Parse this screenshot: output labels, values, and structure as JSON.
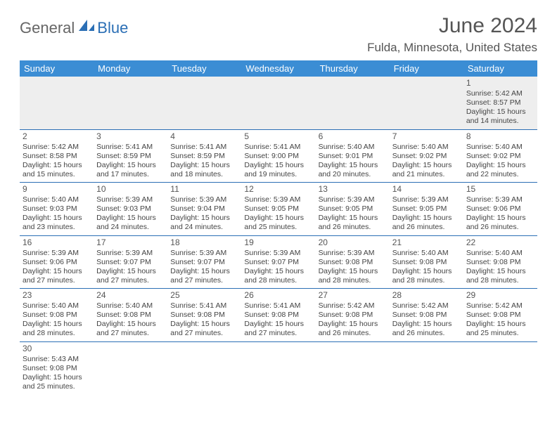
{
  "logo": {
    "text1": "General",
    "text2": "Blue"
  },
  "title": "June 2024",
  "location": "Fulda, Minnesota, United States",
  "colors": {
    "header_bg": "#3b8dd4",
    "header_text": "#ffffff",
    "row_border": "#2b6fb5",
    "first_row_bg": "#eeeeee",
    "body_text": "#444444",
    "title_text": "#555555",
    "logo_accent": "#2b6fb5"
  },
  "columns": [
    "Sunday",
    "Monday",
    "Tuesday",
    "Wednesday",
    "Thursday",
    "Friday",
    "Saturday"
  ],
  "weeks": [
    [
      null,
      null,
      null,
      null,
      null,
      null,
      {
        "d": "1",
        "sr": "5:42 AM",
        "ss": "8:57 PM",
        "dl": "15 hours and 14 minutes."
      }
    ],
    [
      {
        "d": "2",
        "sr": "5:42 AM",
        "ss": "8:58 PM",
        "dl": "15 hours and 15 minutes."
      },
      {
        "d": "3",
        "sr": "5:41 AM",
        "ss": "8:59 PM",
        "dl": "15 hours and 17 minutes."
      },
      {
        "d": "4",
        "sr": "5:41 AM",
        "ss": "8:59 PM",
        "dl": "15 hours and 18 minutes."
      },
      {
        "d": "5",
        "sr": "5:41 AM",
        "ss": "9:00 PM",
        "dl": "15 hours and 19 minutes."
      },
      {
        "d": "6",
        "sr": "5:40 AM",
        "ss": "9:01 PM",
        "dl": "15 hours and 20 minutes."
      },
      {
        "d": "7",
        "sr": "5:40 AM",
        "ss": "9:02 PM",
        "dl": "15 hours and 21 minutes."
      },
      {
        "d": "8",
        "sr": "5:40 AM",
        "ss": "9:02 PM",
        "dl": "15 hours and 22 minutes."
      }
    ],
    [
      {
        "d": "9",
        "sr": "5:40 AM",
        "ss": "9:03 PM",
        "dl": "15 hours and 23 minutes."
      },
      {
        "d": "10",
        "sr": "5:39 AM",
        "ss": "9:03 PM",
        "dl": "15 hours and 24 minutes."
      },
      {
        "d": "11",
        "sr": "5:39 AM",
        "ss": "9:04 PM",
        "dl": "15 hours and 24 minutes."
      },
      {
        "d": "12",
        "sr": "5:39 AM",
        "ss": "9:05 PM",
        "dl": "15 hours and 25 minutes."
      },
      {
        "d": "13",
        "sr": "5:39 AM",
        "ss": "9:05 PM",
        "dl": "15 hours and 26 minutes."
      },
      {
        "d": "14",
        "sr": "5:39 AM",
        "ss": "9:05 PM",
        "dl": "15 hours and 26 minutes."
      },
      {
        "d": "15",
        "sr": "5:39 AM",
        "ss": "9:06 PM",
        "dl": "15 hours and 26 minutes."
      }
    ],
    [
      {
        "d": "16",
        "sr": "5:39 AM",
        "ss": "9:06 PM",
        "dl": "15 hours and 27 minutes."
      },
      {
        "d": "17",
        "sr": "5:39 AM",
        "ss": "9:07 PM",
        "dl": "15 hours and 27 minutes."
      },
      {
        "d": "18",
        "sr": "5:39 AM",
        "ss": "9:07 PM",
        "dl": "15 hours and 27 minutes."
      },
      {
        "d": "19",
        "sr": "5:39 AM",
        "ss": "9:07 PM",
        "dl": "15 hours and 28 minutes."
      },
      {
        "d": "20",
        "sr": "5:39 AM",
        "ss": "9:08 PM",
        "dl": "15 hours and 28 minutes."
      },
      {
        "d": "21",
        "sr": "5:40 AM",
        "ss": "9:08 PM",
        "dl": "15 hours and 28 minutes."
      },
      {
        "d": "22",
        "sr": "5:40 AM",
        "ss": "9:08 PM",
        "dl": "15 hours and 28 minutes."
      }
    ],
    [
      {
        "d": "23",
        "sr": "5:40 AM",
        "ss": "9:08 PM",
        "dl": "15 hours and 28 minutes."
      },
      {
        "d": "24",
        "sr": "5:40 AM",
        "ss": "9:08 PM",
        "dl": "15 hours and 27 minutes."
      },
      {
        "d": "25",
        "sr": "5:41 AM",
        "ss": "9:08 PM",
        "dl": "15 hours and 27 minutes."
      },
      {
        "d": "26",
        "sr": "5:41 AM",
        "ss": "9:08 PM",
        "dl": "15 hours and 27 minutes."
      },
      {
        "d": "27",
        "sr": "5:42 AM",
        "ss": "9:08 PM",
        "dl": "15 hours and 26 minutes."
      },
      {
        "d": "28",
        "sr": "5:42 AM",
        "ss": "9:08 PM",
        "dl": "15 hours and 26 minutes."
      },
      {
        "d": "29",
        "sr": "5:42 AM",
        "ss": "9:08 PM",
        "dl": "15 hours and 25 minutes."
      }
    ],
    [
      {
        "d": "30",
        "sr": "5:43 AM",
        "ss": "9:08 PM",
        "dl": "15 hours and 25 minutes."
      },
      null,
      null,
      null,
      null,
      null,
      null
    ]
  ],
  "labels": {
    "sunrise": "Sunrise: ",
    "sunset": "Sunset: ",
    "daylight": "Daylight: "
  }
}
